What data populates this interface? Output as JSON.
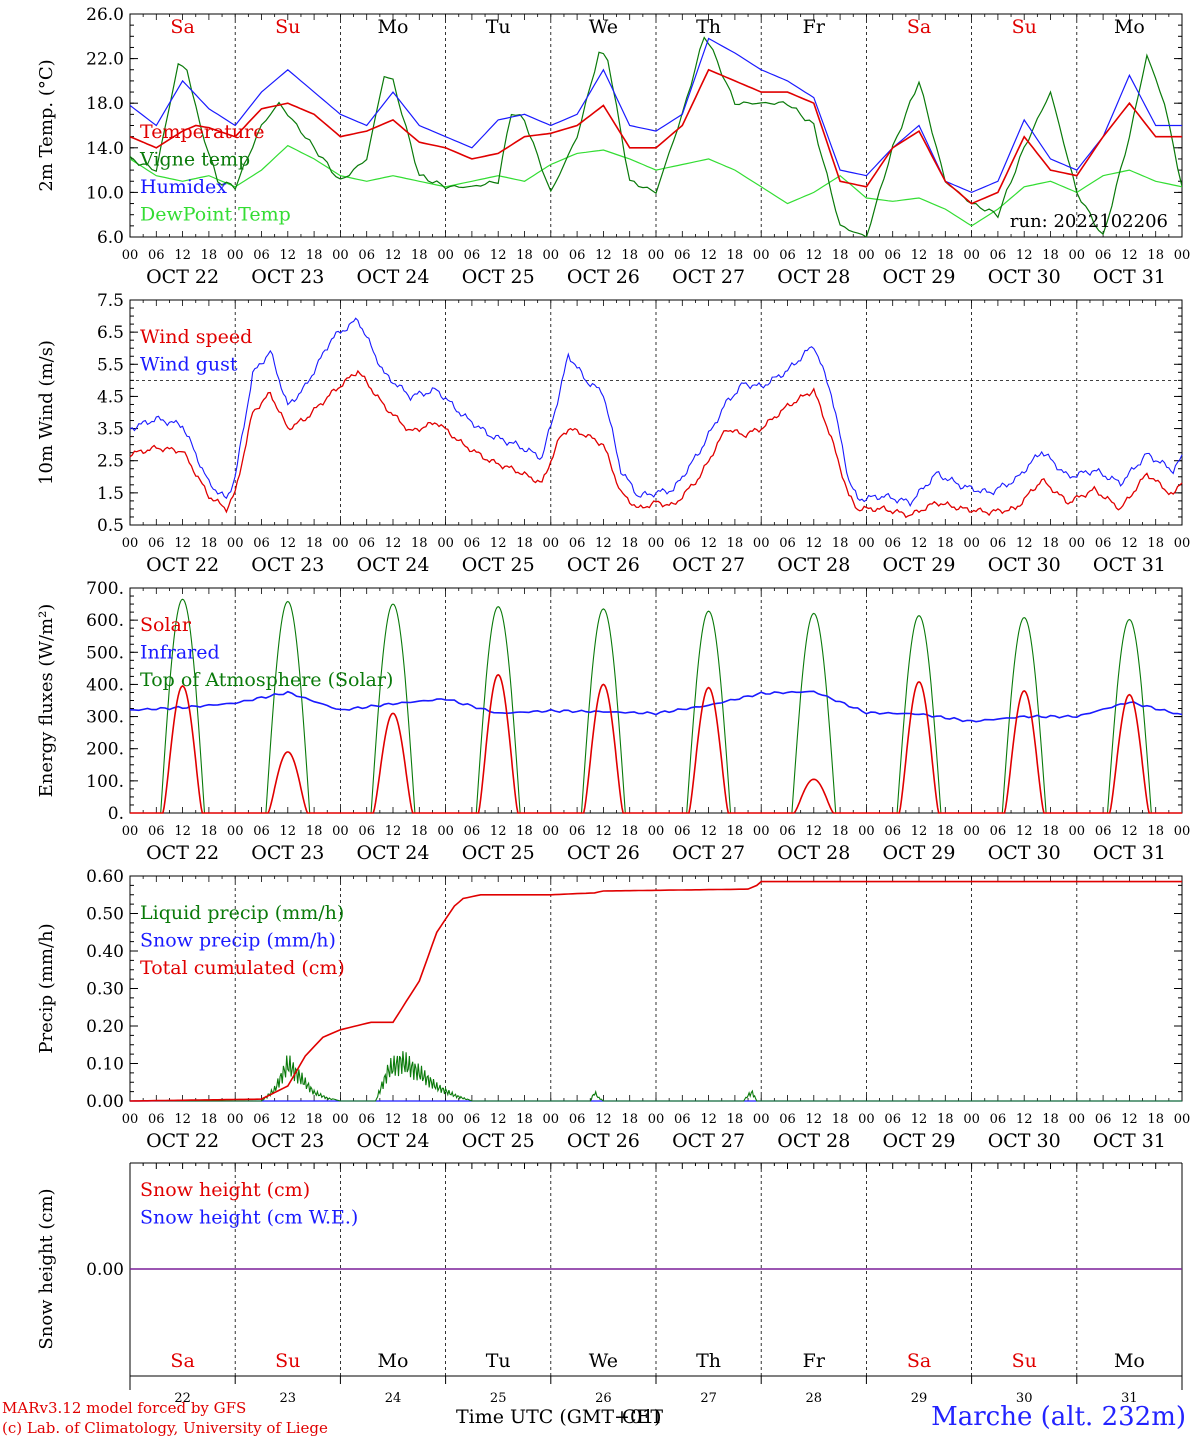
{
  "days": [
    "22",
    "23",
    "24",
    "25",
    "26",
    "27",
    "28",
    "29",
    "30",
    "31"
  ],
  "weekdays": [
    "Sa",
    "Su",
    "Mo",
    "Tu",
    "We",
    "Th",
    "Fr",
    "Sa",
    "Su",
    "Mo"
  ],
  "weekday_colors": [
    "#e00000",
    "#e00000",
    "#000000",
    "#000000",
    "#000000",
    "#000000",
    "#000000",
    "#e00000",
    "#e00000",
    "#000000"
  ],
  "date_labels": [
    "OCT 22",
    "OCT 23",
    "OCT 24",
    "OCT 25",
    "OCT 26",
    "OCT 27",
    "OCT 28",
    "OCT 29",
    "OCT 30",
    "OCT 31"
  ],
  "hour_labels": [
    "00",
    "06",
    "12",
    "18"
  ],
  "hour_label_end": "00",
  "footer": {
    "model": "MARv3.12 model forced by GFS",
    "lab": "(c) Lab. of Climatology, University of Liege",
    "x_title": "Time UTC (GMT+01)",
    "x_title_overprint": "CET",
    "location": "Marche (alt. 232m)"
  },
  "chart_data": [
    {
      "id": "temp",
      "type": "line",
      "ylabel": "2m Temp. (°C)",
      "ylim": [
        6,
        26
      ],
      "yticks": [
        "26.0",
        "22.0",
        "18.0",
        "14.0",
        "10.0",
        "6.0"
      ],
      "run_label": "run: 2022102206",
      "x_unit": "hours since Oct 22 00 UTC",
      "series": [
        {
          "name": "Temperature",
          "color": "#e00000",
          "x": [
            0,
            6,
            12,
            15,
            18,
            24,
            30,
            36,
            42,
            48,
            54,
            60,
            66,
            72,
            78,
            84,
            90,
            96,
            102,
            108,
            114,
            120,
            126,
            132,
            138,
            144,
            150,
            156,
            162,
            168,
            174,
            180,
            186,
            192,
            198,
            204,
            210,
            216,
            222,
            228,
            234,
            240
          ],
          "y": [
            15,
            14,
            15.5,
            16,
            15.8,
            15,
            17.5,
            18,
            17,
            15,
            15.5,
            16.5,
            14.5,
            14,
            13,
            13.5,
            15,
            15.3,
            16,
            17.8,
            14,
            14,
            16,
            21,
            20,
            19,
            19,
            18,
            11,
            10.5,
            14,
            15.5,
            11,
            9,
            10,
            15,
            12,
            11.5,
            15,
            18,
            15,
            15
          ]
        },
        {
          "name": "Vigne temp",
          "color": "#0a7a0a",
          "x": [
            0,
            6,
            11,
            13,
            16,
            20,
            24,
            30,
            34,
            36,
            42,
            48,
            54,
            58,
            60,
            66,
            72,
            78,
            84,
            87,
            90,
            96,
            102,
            107,
            109,
            114,
            120,
            126,
            131,
            132,
            138,
            144,
            150,
            156,
            162,
            168,
            174,
            180,
            186,
            192,
            198,
            204,
            210,
            216,
            222,
            228,
            232,
            236,
            240
          ],
          "y": [
            13,
            12,
            21.5,
            21,
            16,
            11,
            10.5,
            16,
            18,
            17,
            14,
            11,
            13,
            20.5,
            20,
            11.5,
            10.5,
            10.5,
            11,
            17.2,
            16.5,
            10,
            15,
            22.5,
            22,
            11,
            10,
            17,
            24,
            23.5,
            18,
            18,
            18,
            16,
            7,
            6,
            14,
            20,
            11,
            9,
            8,
            14,
            19,
            10,
            6,
            15,
            22.3,
            18,
            10.5
          ]
        },
        {
          "name": "Humidex",
          "color": "#1a1aff",
          "x": [
            0,
            6,
            12,
            18,
            24,
            30,
            36,
            42,
            48,
            54,
            60,
            66,
            72,
            78,
            84,
            90,
            96,
            102,
            108,
            114,
            120,
            126,
            132,
            138,
            144,
            150,
            156,
            162,
            168,
            174,
            180,
            186,
            192,
            198,
            204,
            210,
            216,
            222,
            228,
            234,
            240
          ],
          "y": [
            17.8,
            16,
            20,
            17.5,
            16,
            19,
            21,
            19,
            17,
            16,
            19,
            16,
            15,
            14,
            16.5,
            17,
            16,
            17,
            21,
            16,
            15.5,
            17,
            23.8,
            22.5,
            21,
            20,
            18.5,
            12,
            11.5,
            14,
            16,
            11,
            10,
            11,
            16.5,
            13,
            12,
            15,
            20.5,
            16,
            16
          ]
        },
        {
          "name": "DewPoint Temp",
          "color": "#33dd33",
          "x": [
            0,
            6,
            12,
            18,
            24,
            30,
            36,
            42,
            48,
            54,
            60,
            66,
            72,
            78,
            84,
            90,
            96,
            102,
            108,
            114,
            120,
            126,
            132,
            138,
            144,
            150,
            156,
            162,
            168,
            174,
            180,
            186,
            192,
            198,
            204,
            210,
            216,
            222,
            228,
            234,
            240
          ],
          "y": [
            13,
            11.5,
            11,
            11.5,
            10.5,
            12,
            14.2,
            13,
            11.5,
            11,
            11.5,
            11,
            10.5,
            11,
            11.5,
            11,
            12.5,
            13.5,
            13.8,
            13,
            12,
            12.5,
            13,
            12,
            10.5,
            9,
            10,
            11.5,
            9.5,
            9.2,
            9.5,
            8.5,
            7,
            8.5,
            10.5,
            11,
            10,
            11.5,
            12,
            11,
            10.5
          ]
        }
      ]
    },
    {
      "id": "wind",
      "type": "line",
      "ylabel": "10m Wind (m/s)",
      "ylim": [
        0.5,
        7.5
      ],
      "yticks": [
        "7.5",
        "6.5",
        "5.5",
        "4.5",
        "3.5",
        "2.5",
        "1.5",
        "0.5"
      ],
      "ref_line": 5.0,
      "x_unit": "hours since Oct 22 00 UTC",
      "series": [
        {
          "name": "Wind speed",
          "color": "#e00000",
          "x": [
            0,
            6,
            12,
            18,
            22,
            24,
            28,
            32,
            36,
            40,
            46,
            52,
            58,
            64,
            70,
            76,
            82,
            88,
            94,
            98,
            100,
            104,
            108,
            112,
            116,
            120,
            124,
            130,
            136,
            140,
            144,
            150,
            156,
            160,
            164,
            166,
            172,
            178,
            184,
            190,
            196,
            202,
            208,
            214,
            220,
            226,
            232,
            238,
            240
          ],
          "y": [
            2.7,
            2.9,
            2.8,
            1.4,
            1.0,
            1.5,
            4.0,
            4.6,
            3.5,
            3.8,
            4.6,
            5.3,
            4.2,
            3.4,
            3.7,
            3.0,
            2.5,
            2.2,
            1.8,
            3.2,
            3.5,
            3.3,
            3.0,
            1.5,
            1.0,
            1.2,
            1.1,
            2.0,
            3.5,
            3.3,
            3.5,
            4.2,
            4.7,
            3.2,
            1.4,
            1.0,
            1.0,
            0.8,
            1.2,
            1.0,
            0.9,
            1.0,
            1.9,
            1.2,
            1.6,
            1.0,
            2.1,
            1.4,
            1.9
          ]
        },
        {
          "name": "Wind gust",
          "color": "#1a1aff",
          "x": [
            0,
            6,
            12,
            18,
            22,
            24,
            28,
            32,
            36,
            40,
            46,
            52,
            58,
            64,
            70,
            76,
            82,
            88,
            94,
            98,
            100,
            104,
            108,
            112,
            116,
            120,
            124,
            130,
            136,
            140,
            144,
            150,
            156,
            160,
            164,
            166,
            172,
            178,
            184,
            190,
            196,
            202,
            208,
            214,
            220,
            226,
            232,
            238,
            240
          ],
          "y": [
            3.5,
            3.8,
            3.6,
            1.8,
            1.3,
            2.0,
            5.2,
            5.9,
            4.2,
            4.8,
            6.3,
            6.9,
            5.2,
            4.5,
            4.7,
            3.9,
            3.3,
            3.0,
            2.6,
            4.6,
            5.8,
            5.0,
            4.6,
            2.2,
            1.4,
            1.5,
            1.6,
            2.8,
            4.3,
            4.9,
            4.8,
            5.3,
            6.1,
            4.6,
            1.9,
            1.3,
            1.4,
            1.2,
            2.1,
            1.7,
            1.5,
            1.9,
            2.8,
            2.0,
            2.2,
            1.8,
            2.7,
            2.2,
            2.6
          ]
        }
      ]
    },
    {
      "id": "energy",
      "type": "line",
      "ylabel": "Energy fluxes (W/m²)",
      "ylim": [
        0,
        700
      ],
      "yticks": [
        "700.",
        "600.",
        "500.",
        "400.",
        "300.",
        "200.",
        "100.",
        "0."
      ],
      "x_unit": "hours since Oct 22 00 UTC",
      "day_peaks": {
        "toa": [
          665,
          658,
          650,
          642,
          635,
          628,
          621,
          614,
          608,
          602
        ],
        "solar": [
          395,
          190,
          310,
          430,
          400,
          390,
          105,
          408,
          380,
          368
        ]
      },
      "series": [
        {
          "name": "Solar",
          "color": "#e00000",
          "note": "daily bell-shaped peaks (see day_peaks.solar)"
        },
        {
          "name": "Infrared",
          "color": "#1a1aff",
          "x": [
            0,
            12,
            24,
            36,
            48,
            60,
            72,
            84,
            96,
            108,
            120,
            132,
            144,
            156,
            168,
            180,
            192,
            204,
            216,
            228,
            240
          ],
          "y": [
            320,
            328,
            342,
            375,
            320,
            340,
            355,
            310,
            318,
            315,
            310,
            335,
            372,
            378,
            312,
            308,
            285,
            300,
            300,
            345,
            305
          ]
        },
        {
          "name": "Top of Atmosphere (Solar)",
          "color": "#0a7a0a",
          "note": "daily bell-shaped peaks (see day_peaks.toa)"
        }
      ]
    },
    {
      "id": "precip",
      "type": "line",
      "ylabel": "Precip (mm/h)",
      "ylim": [
        0,
        0.6
      ],
      "yticks": [
        "0.60",
        "0.50",
        "0.40",
        "0.30",
        "0.20",
        "0.10",
        "0.00"
      ],
      "x_unit": "hours since Oct 22 00 UTC",
      "series": [
        {
          "name": "Liquid precip (mm/h)",
          "color": "#0a7a0a",
          "x": [
            0,
            30,
            33,
            36,
            39,
            42,
            45,
            48,
            56,
            59,
            62,
            66,
            70,
            74,
            76,
            78,
            105,
            106,
            107,
            108,
            140,
            141,
            142,
            143,
            240
          ],
          "y": [
            0,
            0,
            0.04,
            0.13,
            0.08,
            0.03,
            0.01,
            0,
            0,
            0.11,
            0.14,
            0.1,
            0.05,
            0.02,
            0.01,
            0,
            0,
            0.03,
            0.01,
            0,
            0,
            0.02,
            0.03,
            0,
            0
          ]
        },
        {
          "name": "Snow precip (mm/h)",
          "color": "#1a1aff",
          "x": [
            0,
            240
          ],
          "y": [
            0,
            0
          ]
        },
        {
          "name": "Total cumulated (cm)",
          "color": "#e00000",
          "x": [
            0,
            30,
            36,
            40,
            44,
            48,
            55,
            60,
            66,
            70,
            74,
            76,
            80,
            96,
            106,
            108,
            141,
            143,
            144,
            240
          ],
          "y": [
            0,
            0.005,
            0.04,
            0.12,
            0.17,
            0.19,
            0.21,
            0.21,
            0.32,
            0.45,
            0.52,
            0.54,
            0.55,
            0.55,
            0.555,
            0.56,
            0.565,
            0.575,
            0.585,
            0.585
          ]
        }
      ]
    },
    {
      "id": "snow",
      "type": "line",
      "ylabel": "Snow height (cm)",
      "yticks": [
        "0.00"
      ],
      "x_unit": "hours since Oct 22 00 UTC",
      "series": [
        {
          "name": "Snow height (cm)",
          "color": "#e00000",
          "x": [
            0,
            240
          ],
          "y": [
            0,
            0
          ]
        },
        {
          "name": "Snow height (cm W.E.)",
          "color": "#1a1aff",
          "x": [
            0,
            240
          ],
          "y": [
            0,
            0
          ]
        }
      ]
    }
  ]
}
